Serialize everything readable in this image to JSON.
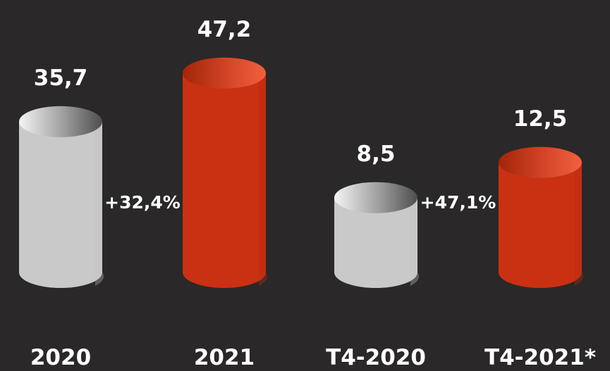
{
  "chart_data": {
    "type": "bar",
    "style": "3d-cylinder",
    "categories": [
      "2020",
      "2021",
      "T4-2020",
      "T4-2021*"
    ],
    "values": [
      35.7,
      47.2,
      8.5,
      12.5
    ],
    "value_labels": [
      "35,7",
      "47,2",
      "8,5",
      "12,5"
    ],
    "groups": [
      {
        "from": 0,
        "to": 1,
        "change_label": "+32,4%"
      },
      {
        "from": 2,
        "to": 3,
        "change_label": "+47,1%"
      }
    ],
    "colors": {
      "background": "#2a2828",
      "previous_period": "#c9c9c9",
      "current_period": "#c93112",
      "text": "#ffffff"
    },
    "title": "",
    "xlabel": "",
    "ylabel": "",
    "grid": false,
    "legend": "none"
  }
}
